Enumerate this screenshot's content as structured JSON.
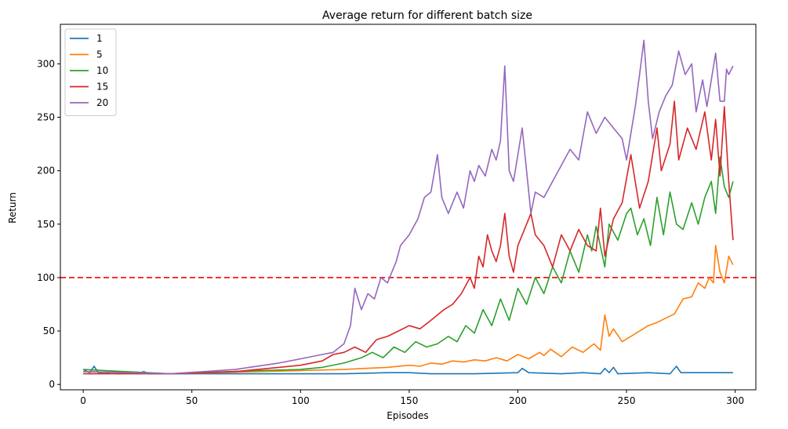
{
  "chart_data": {
    "type": "line",
    "title": "Average return for different batch size",
    "xlabel": "Episodes",
    "ylabel": "Return",
    "xlim": [
      -10.5,
      309.5
    ],
    "ylim": [
      -5,
      337
    ],
    "xticks": [
      0,
      50,
      100,
      150,
      200,
      250,
      300
    ],
    "yticks": [
      0,
      50,
      100,
      150,
      200,
      250,
      300
    ],
    "grid": false,
    "legend_position": "top-left",
    "reference_line": {
      "y": 100,
      "color": "#ff0000",
      "style": "dashed"
    },
    "series": [
      {
        "name": "1",
        "color": "#1f77b4",
        "points": [
          [
            0,
            14
          ],
          [
            3,
            11
          ],
          [
            5,
            17
          ],
          [
            7,
            11
          ],
          [
            10,
            10
          ],
          [
            14,
            12
          ],
          [
            16,
            10
          ],
          [
            20,
            11
          ],
          [
            25,
            10
          ],
          [
            28,
            12
          ],
          [
            30,
            10
          ],
          [
            40,
            10
          ],
          [
            60,
            10
          ],
          [
            80,
            10
          ],
          [
            100,
            10
          ],
          [
            120,
            10
          ],
          [
            140,
            11
          ],
          [
            150,
            11
          ],
          [
            160,
            10
          ],
          [
            180,
            10
          ],
          [
            200,
            11
          ],
          [
            202,
            15
          ],
          [
            205,
            11
          ],
          [
            220,
            10
          ],
          [
            230,
            11
          ],
          [
            238,
            10
          ],
          [
            240,
            15
          ],
          [
            242,
            11
          ],
          [
            244,
            16
          ],
          [
            246,
            10
          ],
          [
            260,
            11
          ],
          [
            270,
            10
          ],
          [
            273,
            17
          ],
          [
            275,
            11
          ],
          [
            290,
            11
          ],
          [
            299,
            11
          ]
        ]
      },
      {
        "name": "5",
        "color": "#ff7f0e",
        "points": [
          [
            0,
            12
          ],
          [
            40,
            10
          ],
          [
            80,
            12
          ],
          [
            100,
            13
          ],
          [
            120,
            14
          ],
          [
            130,
            15
          ],
          [
            140,
            16
          ],
          [
            150,
            18
          ],
          [
            155,
            17
          ],
          [
            160,
            20
          ],
          [
            165,
            19
          ],
          [
            170,
            22
          ],
          [
            175,
            21
          ],
          [
            180,
            23
          ],
          [
            185,
            22
          ],
          [
            190,
            25
          ],
          [
            195,
            22
          ],
          [
            200,
            28
          ],
          [
            205,
            24
          ],
          [
            210,
            30
          ],
          [
            212,
            27
          ],
          [
            215,
            33
          ],
          [
            220,
            26
          ],
          [
            225,
            35
          ],
          [
            230,
            30
          ],
          [
            235,
            38
          ],
          [
            238,
            32
          ],
          [
            240,
            65
          ],
          [
            242,
            45
          ],
          [
            244,
            52
          ],
          [
            248,
            40
          ],
          [
            252,
            45
          ],
          [
            256,
            50
          ],
          [
            260,
            55
          ],
          [
            264,
            58
          ],
          [
            268,
            62
          ],
          [
            272,
            66
          ],
          [
            276,
            80
          ],
          [
            280,
            82
          ],
          [
            283,
            95
          ],
          [
            286,
            90
          ],
          [
            288,
            100
          ],
          [
            290,
            95
          ],
          [
            291,
            130
          ],
          [
            293,
            105
          ],
          [
            295,
            95
          ],
          [
            297,
            120
          ],
          [
            299,
            112
          ]
        ]
      },
      {
        "name": "10",
        "color": "#2ca02c",
        "points": [
          [
            0,
            14
          ],
          [
            40,
            10
          ],
          [
            80,
            13
          ],
          [
            100,
            14
          ],
          [
            110,
            16
          ],
          [
            120,
            20
          ],
          [
            128,
            25
          ],
          [
            133,
            30
          ],
          [
            138,
            25
          ],
          [
            143,
            35
          ],
          [
            148,
            30
          ],
          [
            153,
            40
          ],
          [
            158,
            35
          ],
          [
            163,
            38
          ],
          [
            168,
            45
          ],
          [
            172,
            40
          ],
          [
            176,
            55
          ],
          [
            180,
            48
          ],
          [
            184,
            70
          ],
          [
            188,
            55
          ],
          [
            192,
            80
          ],
          [
            196,
            60
          ],
          [
            200,
            90
          ],
          [
            204,
            75
          ],
          [
            208,
            100
          ],
          [
            212,
            85
          ],
          [
            216,
            110
          ],
          [
            220,
            95
          ],
          [
            224,
            125
          ],
          [
            228,
            105
          ],
          [
            232,
            140
          ],
          [
            234,
            125
          ],
          [
            236,
            148
          ],
          [
            240,
            110
          ],
          [
            242,
            150
          ],
          [
            246,
            135
          ],
          [
            250,
            160
          ],
          [
            252,
            165
          ],
          [
            255,
            140
          ],
          [
            258,
            155
          ],
          [
            261,
            130
          ],
          [
            264,
            175
          ],
          [
            267,
            140
          ],
          [
            270,
            180
          ],
          [
            273,
            150
          ],
          [
            276,
            145
          ],
          [
            280,
            170
          ],
          [
            283,
            150
          ],
          [
            286,
            175
          ],
          [
            289,
            190
          ],
          [
            291,
            160
          ],
          [
            293,
            213
          ],
          [
            295,
            185
          ],
          [
            297,
            175
          ],
          [
            299,
            190
          ]
        ]
      },
      {
        "name": "15",
        "color": "#d62728",
        "points": [
          [
            0,
            10
          ],
          [
            40,
            10
          ],
          [
            70,
            12
          ],
          [
            90,
            16
          ],
          [
            100,
            18
          ],
          [
            110,
            22
          ],
          [
            115,
            28
          ],
          [
            120,
            30
          ],
          [
            125,
            35
          ],
          [
            130,
            30
          ],
          [
            135,
            42
          ],
          [
            140,
            45
          ],
          [
            145,
            50
          ],
          [
            150,
            55
          ],
          [
            155,
            52
          ],
          [
            160,
            60
          ],
          [
            163,
            65
          ],
          [
            166,
            70
          ],
          [
            170,
            75
          ],
          [
            174,
            85
          ],
          [
            178,
            100
          ],
          [
            180,
            90
          ],
          [
            182,
            120
          ],
          [
            184,
            110
          ],
          [
            186,
            140
          ],
          [
            188,
            125
          ],
          [
            190,
            115
          ],
          [
            192,
            130
          ],
          [
            194,
            160
          ],
          [
            196,
            120
          ],
          [
            198,
            105
          ],
          [
            200,
            130
          ],
          [
            204,
            150
          ],
          [
            206,
            160
          ],
          [
            208,
            140
          ],
          [
            212,
            130
          ],
          [
            216,
            110
          ],
          [
            220,
            140
          ],
          [
            224,
            125
          ],
          [
            228,
            145
          ],
          [
            232,
            130
          ],
          [
            236,
            125
          ],
          [
            238,
            165
          ],
          [
            240,
            120
          ],
          [
            244,
            155
          ],
          [
            248,
            170
          ],
          [
            252,
            215
          ],
          [
            256,
            165
          ],
          [
            260,
            190
          ],
          [
            264,
            240
          ],
          [
            266,
            200
          ],
          [
            270,
            225
          ],
          [
            272,
            265
          ],
          [
            274,
            210
          ],
          [
            278,
            240
          ],
          [
            282,
            220
          ],
          [
            286,
            255
          ],
          [
            289,
            210
          ],
          [
            291,
            248
          ],
          [
            293,
            195
          ],
          [
            295,
            260
          ],
          [
            297,
            190
          ],
          [
            299,
            135
          ]
        ]
      },
      {
        "name": "20",
        "color": "#9467bd",
        "points": [
          [
            0,
            12
          ],
          [
            40,
            10
          ],
          [
            70,
            14
          ],
          [
            90,
            20
          ],
          [
            100,
            24
          ],
          [
            110,
            28
          ],
          [
            115,
            30
          ],
          [
            120,
            38
          ],
          [
            123,
            55
          ],
          [
            125,
            90
          ],
          [
            128,
            70
          ],
          [
            131,
            85
          ],
          [
            134,
            80
          ],
          [
            137,
            100
          ],
          [
            140,
            95
          ],
          [
            142,
            105
          ],
          [
            144,
            115
          ],
          [
            146,
            130
          ],
          [
            150,
            140
          ],
          [
            154,
            155
          ],
          [
            157,
            175
          ],
          [
            160,
            180
          ],
          [
            163,
            215
          ],
          [
            165,
            175
          ],
          [
            168,
            160
          ],
          [
            172,
            180
          ],
          [
            175,
            165
          ],
          [
            178,
            200
          ],
          [
            180,
            190
          ],
          [
            182,
            205
          ],
          [
            185,
            195
          ],
          [
            188,
            220
          ],
          [
            190,
            210
          ],
          [
            192,
            228
          ],
          [
            194,
            298
          ],
          [
            196,
            200
          ],
          [
            198,
            190
          ],
          [
            200,
            215
          ],
          [
            202,
            240
          ],
          [
            204,
            200
          ],
          [
            206,
            160
          ],
          [
            208,
            180
          ],
          [
            212,
            175
          ],
          [
            216,
            190
          ],
          [
            220,
            205
          ],
          [
            224,
            220
          ],
          [
            228,
            210
          ],
          [
            232,
            255
          ],
          [
            236,
            235
          ],
          [
            240,
            250
          ],
          [
            244,
            240
          ],
          [
            248,
            230
          ],
          [
            250,
            210
          ],
          [
            254,
            260
          ],
          [
            256,
            290
          ],
          [
            258,
            322
          ],
          [
            260,
            265
          ],
          [
            262,
            230
          ],
          [
            265,
            255
          ],
          [
            268,
            270
          ],
          [
            271,
            280
          ],
          [
            274,
            312
          ],
          [
            277,
            290
          ],
          [
            280,
            300
          ],
          [
            282,
            255
          ],
          [
            285,
            285
          ],
          [
            287,
            260
          ],
          [
            289,
            285
          ],
          [
            291,
            310
          ],
          [
            293,
            265
          ],
          [
            295,
            265
          ],
          [
            296,
            295
          ],
          [
            297,
            290
          ],
          [
            299,
            298
          ]
        ]
      }
    ]
  }
}
